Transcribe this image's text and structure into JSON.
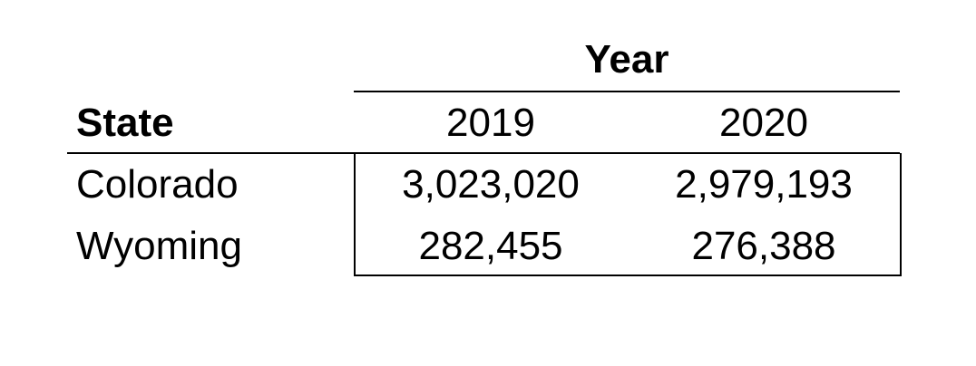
{
  "table": {
    "group_header": "Year",
    "row_header": "State",
    "columns": [
      "2019",
      "2020"
    ],
    "rows": [
      {
        "state": "Colorado",
        "values": [
          "3,023,020",
          "2,979,193"
        ]
      },
      {
        "state": "Wyoming",
        "values": [
          "282,455",
          "276,388"
        ]
      }
    ]
  }
}
